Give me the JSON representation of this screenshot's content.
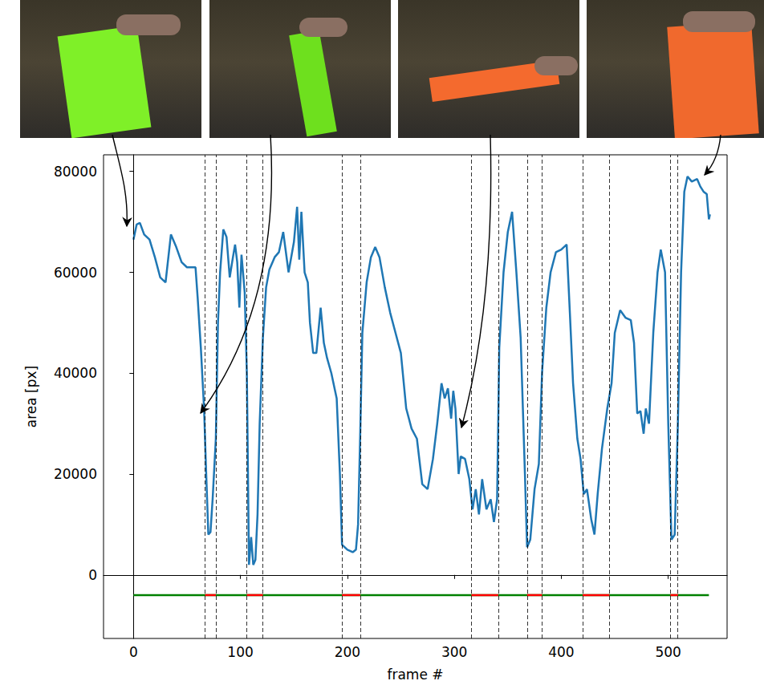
{
  "chart_data": {
    "type": "line",
    "x_label": "frame #",
    "y_label": "area [px]",
    "xlim": [
      -28,
      555
    ],
    "ylim": [
      -12600,
      83300
    ],
    "xticks": [
      0,
      100,
      200,
      300,
      400,
      500
    ],
    "yticks": [
      0,
      20000,
      40000,
      60000,
      80000
    ],
    "grid": false,
    "series": [
      {
        "name": "area",
        "color": "#1f77b4",
        "x": [
          0,
          3,
          6,
          10,
          15,
          20,
          25,
          30,
          35,
          40,
          45,
          50,
          55,
          58,
          60,
          63,
          66,
          68,
          70,
          72,
          74,
          77,
          79,
          81,
          84,
          87,
          90,
          93,
          95,
          97,
          99,
          101,
          104,
          106,
          108,
          110,
          112,
          114,
          116,
          118,
          121,
          124,
          127,
          132,
          136,
          140,
          145,
          150,
          153,
          155,
          157,
          160,
          163,
          165,
          168,
          171,
          175,
          178,
          181,
          185,
          190,
          193,
          195,
          200,
          205,
          208,
          210,
          212,
          214,
          218,
          222,
          226,
          230,
          235,
          240,
          245,
          250,
          255,
          260,
          265,
          270,
          275,
          280,
          284,
          288,
          291,
          294,
          297,
          299,
          301,
          304,
          306,
          310,
          314,
          317,
          320,
          323,
          326,
          330,
          334,
          337,
          340,
          342,
          346,
          350,
          354,
          358,
          362,
          366,
          368,
          371,
          375,
          379,
          382,
          386,
          390,
          395,
          400,
          405,
          408,
          411,
          415,
          418,
          421,
          424,
          428,
          431,
          434,
          438,
          443,
          447,
          450,
          455,
          460,
          465,
          468,
          471,
          474,
          477,
          479,
          482,
          486,
          490,
          493,
          497,
          500,
          503,
          506,
          509,
          512,
          515,
          518,
          522,
          527,
          530,
          533,
          536,
          538,
          539
        ],
        "values": [
          66500,
          69500,
          69800,
          67500,
          66500,
          63000,
          59000,
          58000,
          67500,
          65000,
          62000,
          61000,
          61000,
          61000,
          55000,
          45000,
          33000,
          20000,
          8000,
          8500,
          15000,
          27000,
          50000,
          60000,
          68500,
          67000,
          59000,
          63000,
          65500,
          62000,
          53000,
          63500,
          56000,
          40000,
          2000,
          7500,
          2000,
          3000,
          12000,
          30000,
          47000,
          57000,
          60500,
          63000,
          64000,
          68000,
          60000,
          66000,
          73000,
          62500,
          72000,
          60000,
          58000,
          50000,
          44000,
          44000,
          53000,
          46000,
          43000,
          40000,
          35000,
          20000,
          6000,
          5000,
          4500,
          5000,
          10000,
          28000,
          48000,
          58000,
          63000,
          65000,
          63000,
          57000,
          52000,
          48000,
          44000,
          33000,
          29000,
          27000,
          18000,
          17000,
          23000,
          30000,
          38000,
          35000,
          37000,
          31000,
          36500,
          33000,
          20000,
          23500,
          23000,
          19000,
          13000,
          17000,
          12000,
          19000,
          13000,
          15000,
          10500,
          15000,
          45000,
          60000,
          68000,
          72000,
          60000,
          47000,
          20000,
          5500,
          7000,
          17000,
          22000,
          40000,
          53000,
          60000,
          64000,
          64500,
          65500,
          52000,
          38000,
          27000,
          23000,
          16000,
          17000,
          11000,
          8000,
          16000,
          25000,
          33000,
          38000,
          48000,
          52500,
          51000,
          50500,
          46000,
          32000,
          32500,
          28000,
          33000,
          30000,
          48000,
          60000,
          64500,
          60000,
          30000,
          7000,
          8000,
          30000,
          60000,
          76000,
          79000,
          78000,
          78500,
          77000,
          76000,
          75500,
          70500,
          71500
        ]
      }
    ],
    "vlines": [
      0,
      67,
      77,
      106,
      121,
      195,
      212,
      316,
      341,
      368,
      382,
      420,
      445,
      502,
      509
    ],
    "band": {
      "y": -4000,
      "x": [
        0,
        538
      ],
      "color": "#008000",
      "intervals": [
        [
          67,
          77
        ],
        [
          106,
          121
        ],
        [
          195,
          212
        ],
        [
          316,
          341
        ],
        [
          368,
          382
        ],
        [
          420,
          445
        ],
        [
          502,
          509
        ]
      ],
      "interval_color": "#ff0000"
    }
  }
}
